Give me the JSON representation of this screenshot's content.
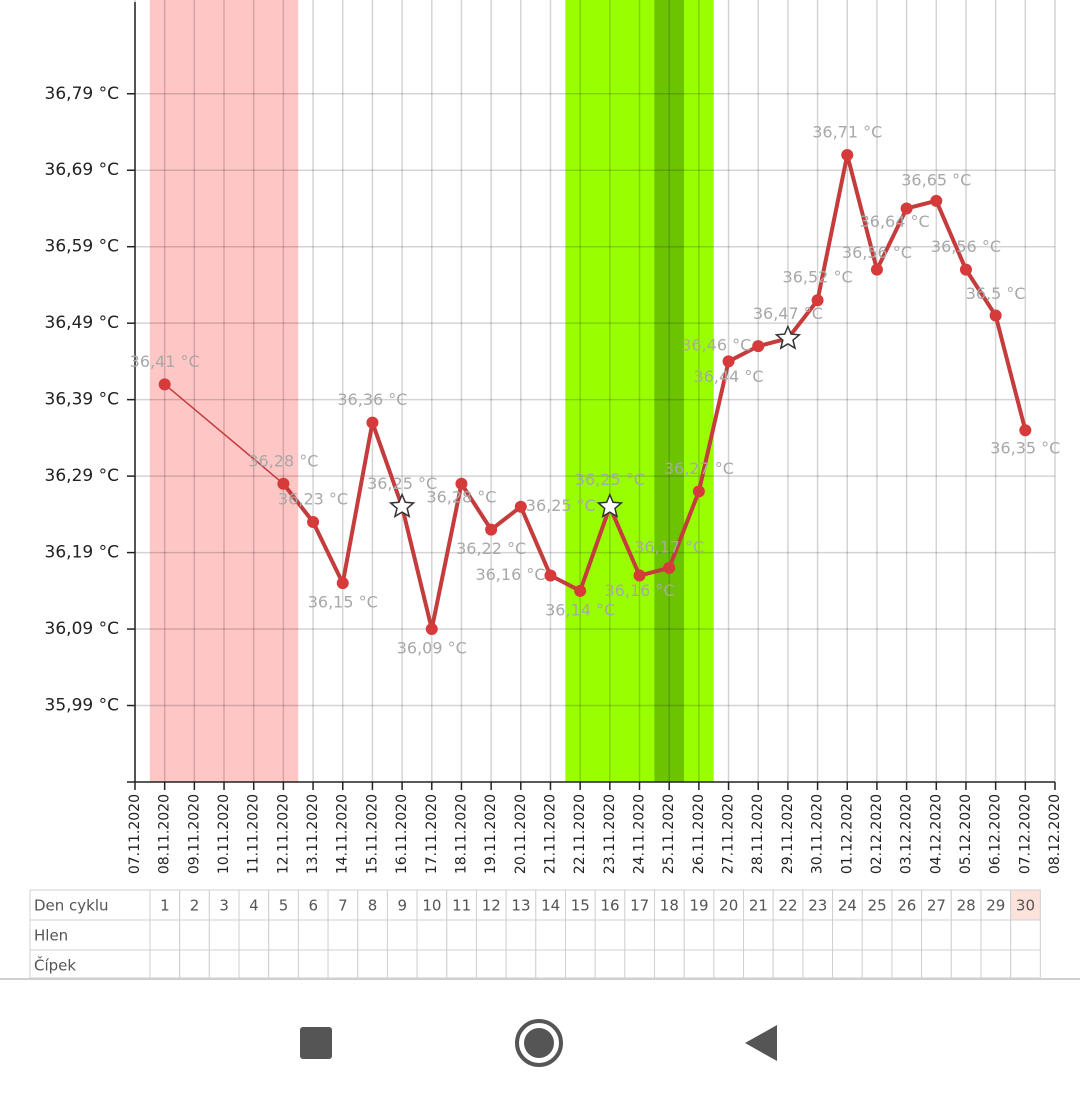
{
  "chart_data": {
    "type": "line",
    "xticks": [
      "07.11.2020",
      "08.11.2020",
      "09.11.2020",
      "10.11.2020",
      "11.11.2020",
      "12.11.2020",
      "13.11.2020",
      "14.11.2020",
      "15.11.2020",
      "16.11.2020",
      "17.11.2020",
      "18.11.2020",
      "19.11.2020",
      "20.11.2020",
      "21.11.2020",
      "22.11.2020",
      "23.11.2020",
      "24.11.2020",
      "25.11.2020",
      "26.11.2020",
      "27.11.2020",
      "28.11.2020",
      "29.11.2020",
      "30.11.2020",
      "01.12.2020",
      "02.12.2020",
      "03.12.2020",
      "04.12.2020",
      "05.12.2020",
      "06.12.2020",
      "07.12.2020",
      "08.12.2020"
    ],
    "x": [
      "08.11.2020",
      "12.11.2020",
      "13.11.2020",
      "14.11.2020",
      "15.11.2020",
      "16.11.2020",
      "17.11.2020",
      "18.11.2020",
      "19.11.2020",
      "20.11.2020",
      "21.11.2020",
      "22.11.2020",
      "23.11.2020",
      "24.11.2020",
      "25.11.2020",
      "26.11.2020",
      "27.11.2020",
      "28.11.2020",
      "29.11.2020",
      "30.11.2020",
      "01.12.2020",
      "02.12.2020",
      "03.12.2020",
      "04.12.2020",
      "05.12.2020",
      "06.12.2020",
      "07.12.2020"
    ],
    "values": [
      36.41,
      36.28,
      36.23,
      36.15,
      36.36,
      36.25,
      36.09,
      36.28,
      36.22,
      36.25,
      36.16,
      36.14,
      36.25,
      36.16,
      36.17,
      36.27,
      36.44,
      36.46,
      36.47,
      36.52,
      36.71,
      36.56,
      36.64,
      36.65,
      36.56,
      36.5,
      36.35
    ],
    "value_labels": [
      "36,41 °C",
      "36,28 °C",
      "36,23 °C",
      "36,15 °C",
      "36,36 °C",
      "36,25 °C",
      "36,09 °C",
      "36,28 °C",
      "36,22 °C",
      "36,25 °C",
      "36,16 °C",
      "36,14 °C",
      "36,25 °C",
      "36,16 °C",
      "36,17 °C",
      "36,27 °C",
      "36,44 °C",
      "36,46 °C",
      "36,47 °C",
      "36,52 °C",
      "36,71 °C",
      "36,56 °C",
      "36,64 °C",
      "36,65 °C",
      "36,56 °C",
      "36,5 °C",
      "36,35 °C"
    ],
    "markers": [
      "circle",
      "circle",
      "circle",
      "circle",
      "circle",
      "star",
      "circle",
      "circle",
      "circle",
      "circle",
      "circle",
      "circle",
      "star",
      "circle",
      "circle",
      "circle",
      "circle",
      "circle",
      "star",
      "circle",
      "circle",
      "circle",
      "circle",
      "circle",
      "circle",
      "circle",
      "circle"
    ],
    "color": "#c43c3c",
    "ylim": [
      35.89,
      36.91
    ],
    "yticks": [
      {
        "value": 35.99,
        "label": "35,99 °C"
      },
      {
        "value": 36.09,
        "label": "36,09 °C"
      },
      {
        "value": 36.19,
        "label": "36,19 °C"
      },
      {
        "value": 36.29,
        "label": "36,29 °C"
      },
      {
        "value": 36.39,
        "label": "36,39 °C"
      },
      {
        "value": 36.49,
        "label": "36,49 °C"
      },
      {
        "value": 36.59,
        "label": "36,59 °C"
      },
      {
        "value": 36.69,
        "label": "36,69 °C"
      },
      {
        "value": 36.79,
        "label": "36,79 °C"
      }
    ],
    "grid": true,
    "bands": [
      {
        "from": "08.11.2020",
        "to": "12.11.2020",
        "color": "#ffc6c6"
      },
      {
        "from": "22.11.2020",
        "to": "26.11.2020",
        "color": "#99ff00"
      },
      {
        "from": "25.11.2020",
        "to": "25.11.2020",
        "color": "#6cc400"
      }
    ]
  },
  "table": {
    "rows": [
      {
        "label": "Den cyklu",
        "cells": [
          1,
          2,
          3,
          4,
          5,
          6,
          7,
          8,
          9,
          10,
          11,
          12,
          13,
          14,
          15,
          16,
          17,
          18,
          19,
          20,
          21,
          22,
          23,
          24,
          25,
          26,
          27,
          28,
          29,
          30
        ]
      },
      {
        "label": "Hlen"
      },
      {
        "label": "Čípek"
      }
    ]
  }
}
